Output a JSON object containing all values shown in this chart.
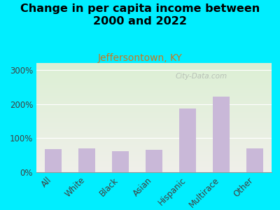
{
  "title": "Change in per capita income between\n2000 and 2022",
  "subtitle": "Jeffersontown, KY",
  "categories": [
    "All",
    "White",
    "Black",
    "Asian",
    "Hispanic",
    "Multirace",
    "Other"
  ],
  "values": [
    67,
    70,
    62,
    66,
    187,
    222,
    70
  ],
  "bar_color": "#c9b8d8",
  "title_fontsize": 11.5,
  "subtitle_fontsize": 10,
  "subtitle_color": "#c87820",
  "background_outer": "#00eeff",
  "background_inner_top": "#dcefd4",
  "background_inner_bottom": "#f0f0ea",
  "ylim": [
    0,
    320
  ],
  "yticks": [
    0,
    100,
    200,
    300
  ],
  "ytick_labels": [
    "0%",
    "100%",
    "200%",
    "300%"
  ],
  "watermark": "City-Data.com",
  "watermark_color": "#b0b8b0"
}
